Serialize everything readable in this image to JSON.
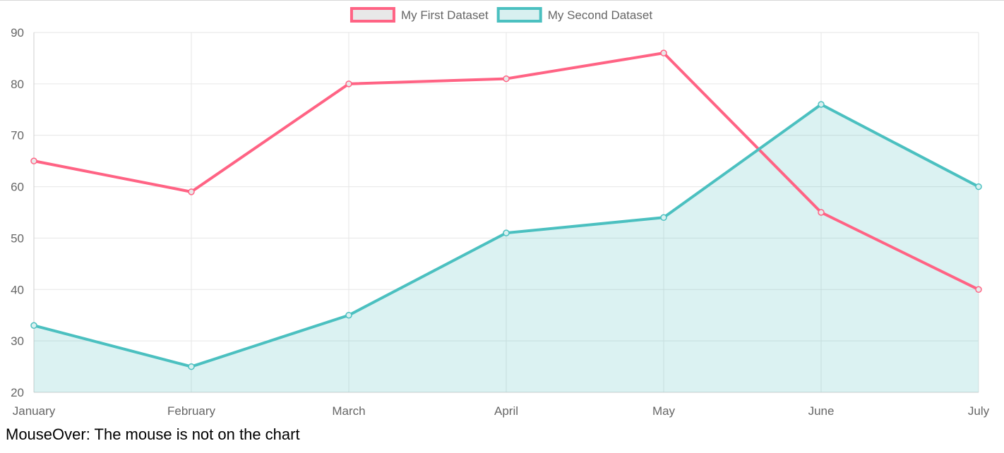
{
  "chart_data": {
    "type": "line",
    "categories": [
      "January",
      "February",
      "March",
      "April",
      "May",
      "June",
      "July"
    ],
    "ylim": [
      20,
      90
    ],
    "yticks": [
      20,
      30,
      40,
      50,
      60,
      70,
      80,
      90
    ],
    "grid": true,
    "legend_position": "top",
    "series": [
      {
        "name": "My First Dataset",
        "values": [
          65,
          59,
          80,
          81,
          86,
          55,
          40
        ],
        "color": "#ff6384",
        "legend_fill": "#e8e8e8",
        "fill": false
      },
      {
        "name": "My Second Dataset",
        "values": [
          33,
          25,
          35,
          51,
          54,
          76,
          60
        ],
        "color": "#4bc0c0",
        "legend_fill": "#d8f0f0",
        "area_fill": "rgba(75,192,192,0.2)",
        "fill": true
      }
    ]
  },
  "status": {
    "text": "MouseOver: The mouse is not on the chart"
  }
}
